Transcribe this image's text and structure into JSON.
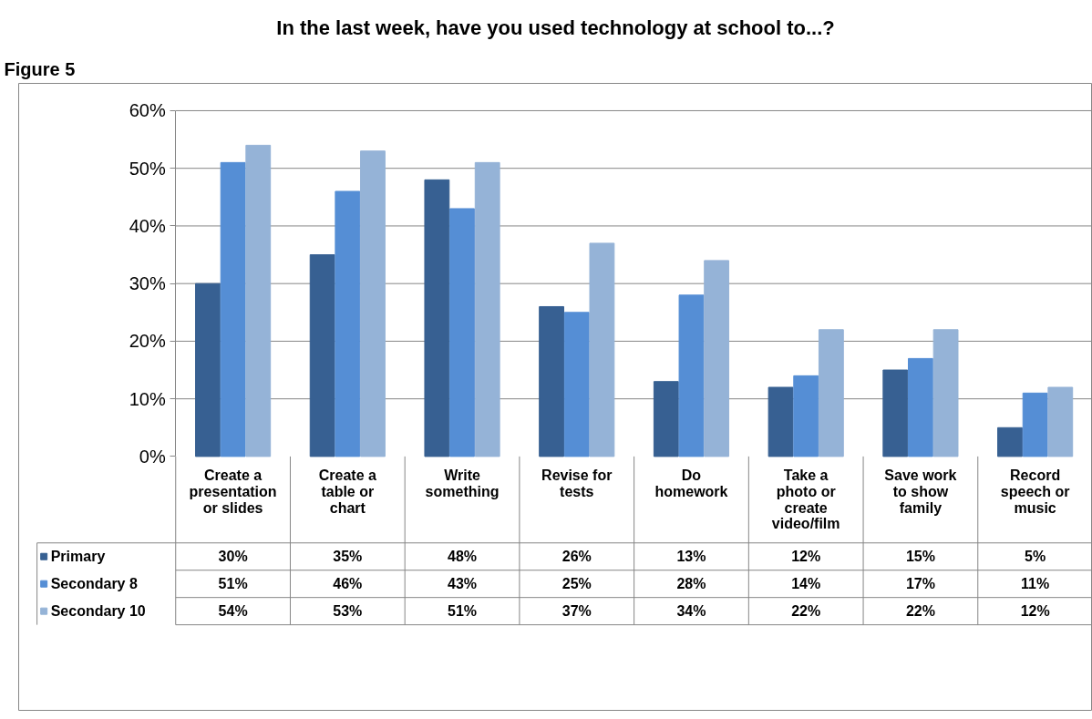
{
  "chart_data": {
    "type": "bar",
    "title": "In the last week, have you used technology at school to...?",
    "annotations": [
      "Figure 5"
    ],
    "categories": [
      "Create a\npresentation\nor slides",
      "Create a\ntable or\nchart",
      "Write\nsomething",
      "Revise for\ntests",
      "Do\nhomework",
      "Take a\nphoto or\ncreate\nvideo/film",
      "Save work\nto show\nfamily",
      "Record\nspeech or\nmusic"
    ],
    "series": [
      {
        "name": "Primary",
        "color": "#376092",
        "values": [
          30,
          35,
          48,
          26,
          13,
          12,
          15,
          5
        ],
        "value_labels": [
          "30%",
          "35%",
          "48%",
          "26%",
          "13%",
          "12%",
          "15%",
          "5%"
        ]
      },
      {
        "name": "Secondary 8",
        "color": "#558ed5",
        "values": [
          51,
          46,
          43,
          25,
          28,
          14,
          17,
          11
        ],
        "value_labels": [
          "51%",
          "46%",
          "43%",
          "25%",
          "28%",
          "14%",
          "17%",
          "11%"
        ]
      },
      {
        "name": "Secondary 10",
        "color": "#95b3d7",
        "values": [
          54,
          53,
          51,
          37,
          34,
          22,
          22,
          12
        ],
        "value_labels": [
          "54%",
          "53%",
          "51%",
          "37%",
          "34%",
          "22%",
          "22%",
          "12%"
        ]
      }
    ],
    "ylim": [
      0,
      60
    ],
    "yticks": [
      {
        "value": 0,
        "label": "0%"
      },
      {
        "value": 10,
        "label": "10%"
      },
      {
        "value": 20,
        "label": "20%"
      },
      {
        "value": 30,
        "label": "30%"
      },
      {
        "value": 40,
        "label": "40%"
      },
      {
        "value": 50,
        "label": "50%"
      },
      {
        "value": 60,
        "label": "60%"
      }
    ],
    "grid": "y",
    "legend": "bottom"
  }
}
